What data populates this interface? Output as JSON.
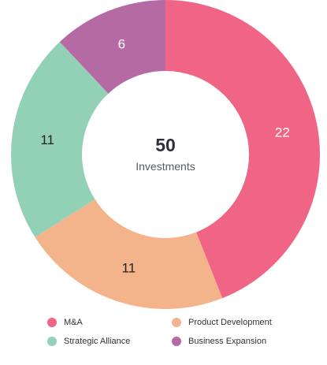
{
  "chart_data": {
    "type": "pie",
    "variant": "donut",
    "categories": [
      "M&A",
      "Product Development",
      "Strategic Alliance",
      "Business Expansion"
    ],
    "values": [
      22,
      11,
      11,
      6
    ],
    "colors": [
      "#f06585",
      "#f4b48b",
      "#93d1b6",
      "#b56aa3"
    ],
    "label_colors": [
      "#ffffff",
      "#222222",
      "#222222",
      "#ffffff"
    ],
    "center": {
      "value": "50",
      "caption": "Investments"
    },
    "legend": {
      "placement": "bottom",
      "items": [
        {
          "label": "M&A",
          "color": "#f06585"
        },
        {
          "label": "Product Development",
          "color": "#f4b48b"
        },
        {
          "label": "Strategic Alliance",
          "color": "#93d1b6"
        },
        {
          "label": "Business Expansion",
          "color": "#b56aa3"
        }
      ]
    }
  }
}
